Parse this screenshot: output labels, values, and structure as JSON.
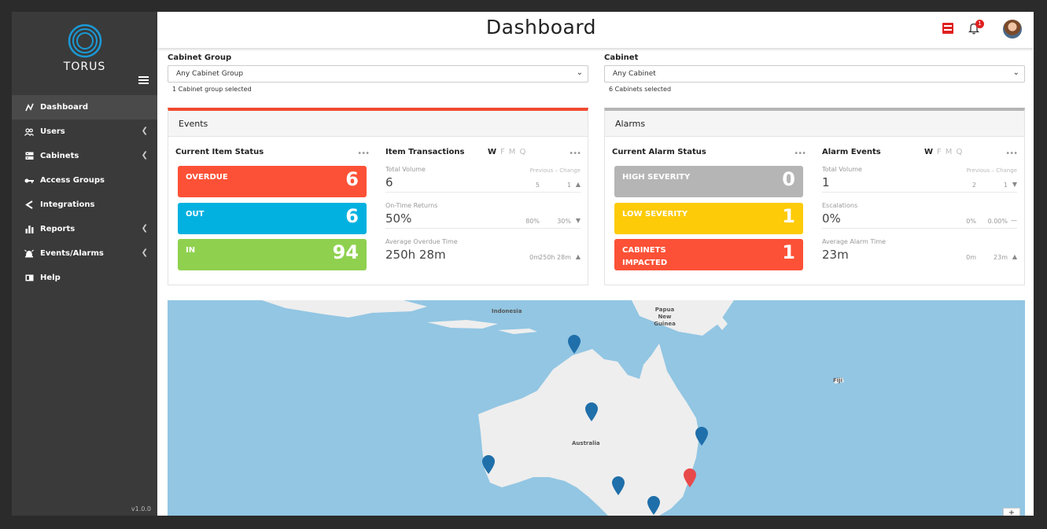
{
  "app": {
    "brand": "TORUS",
    "version": "v1.0.0"
  },
  "colors": {
    "sidebar": "#3a3a3a",
    "overdue": "#fc5136",
    "out": "#03b1e0",
    "in": "#8fd14f",
    "high_severity": "#b5b5b5",
    "low_severity": "#fdcb08",
    "cabinets_impacted": "#fc5136",
    "pin_blue": "#1f6faa",
    "pin_red": "#e84a4a"
  },
  "sidebar": {
    "items": [
      {
        "label": "Dashboard",
        "icon": "activity-icon",
        "has_chevron": false
      },
      {
        "label": "Users",
        "icon": "users-icon",
        "has_chevron": true
      },
      {
        "label": "Cabinets",
        "icon": "server-icon",
        "has_chevron": true
      },
      {
        "label": "Access Groups",
        "icon": "key-icon",
        "has_chevron": false
      },
      {
        "label": "Integrations",
        "icon": "share-icon",
        "has_chevron": false
      },
      {
        "label": "Reports",
        "icon": "bar-chart-icon",
        "has_chevron": true
      },
      {
        "label": "Events/Alarms",
        "icon": "alarm-icon",
        "has_chevron": true
      },
      {
        "label": "Help",
        "icon": "book-icon",
        "has_chevron": false
      }
    ]
  },
  "header": {
    "title": "Dashboard",
    "notification_count": "1"
  },
  "filters": {
    "cabinet_group": {
      "label": "Cabinet Group",
      "value": "Any Cabinet Group",
      "note": "1 Cabinet group selected"
    },
    "cabinet": {
      "label": "Cabinet",
      "value": "Any Cabinet",
      "note": "6 Cabinets selected"
    }
  },
  "events": {
    "title": "Events",
    "status": {
      "title": "Current Item Status",
      "tiles": [
        {
          "label": "OVERDUE",
          "value": "6"
        },
        {
          "label": "OUT",
          "value": "6"
        },
        {
          "label": "IN",
          "value": "94"
        }
      ]
    },
    "transactions": {
      "title": "Item Transactions",
      "periods": [
        "W",
        "F",
        "M",
        "Q"
      ],
      "prev_change_label": "Previous – Change",
      "metrics": [
        {
          "label": "Total Volume",
          "value": "6",
          "previous": "5",
          "change": "1",
          "arrow": "▲"
        },
        {
          "label": "On-Time Returns",
          "value": "50%",
          "previous": "80%",
          "change": "30%",
          "arrow": "▼"
        },
        {
          "label": "Average Overdue Time",
          "value": "250h 28m",
          "previous": "0m",
          "change": "250h 28m",
          "arrow": "▲"
        }
      ]
    }
  },
  "alarms": {
    "title": "Alarms",
    "status": {
      "title": "Current Alarm Status",
      "tiles": [
        {
          "label": "HIGH SEVERITY",
          "value": "0"
        },
        {
          "label": "LOW SEVERITY",
          "value": "1"
        },
        {
          "label": "CABINETS IMPACTED",
          "value": "1"
        }
      ]
    },
    "events": {
      "title": "Alarm Events",
      "periods": [
        "W",
        "F",
        "M",
        "Q"
      ],
      "prev_change_label": "Previous – Change",
      "metrics": [
        {
          "label": "Total Volume",
          "value": "1",
          "previous": "2",
          "change": "1",
          "arrow": "▼"
        },
        {
          "label": "Escalations",
          "value": "0%",
          "previous": "0%",
          "change": "0.00%",
          "arrow": "—"
        },
        {
          "label": "Average Alarm Time",
          "value": "23m",
          "previous": "0m",
          "change": "23m",
          "arrow": "▲"
        }
      ]
    }
  },
  "map": {
    "labels": {
      "indonesia": "Indonesia",
      "png": "Papua New Guinea",
      "fiji": "Fiji",
      "australia": "Australia"
    },
    "zoom_in": "+"
  }
}
